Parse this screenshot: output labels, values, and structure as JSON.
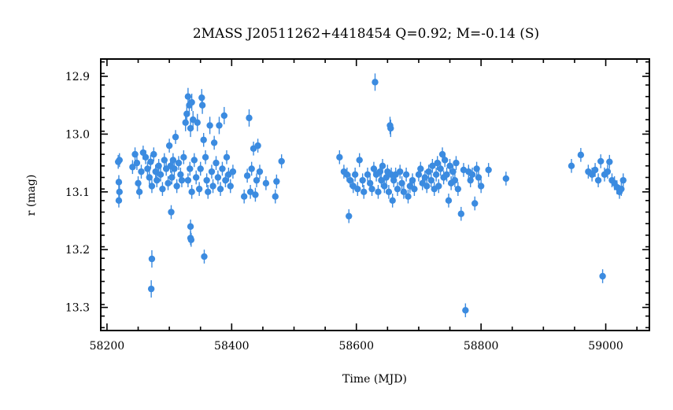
{
  "chart_data": {
    "type": "scatter",
    "title": "2MASS J20511262+4418454  Q=0.92; M=-0.14 (S)",
    "xlabel": "Time (MJD)",
    "ylabel": "r (mag)",
    "xlim": [
      58190,
      59070
    ],
    "ylim": [
      13.34,
      12.87
    ],
    "y_inverted": true,
    "x_ticks": [
      58200,
      58400,
      58600,
      58800,
      59000
    ],
    "x_tick_labels": [
      "58200",
      "58400",
      "58600",
      "58800",
      "59000"
    ],
    "y_ticks": [
      12.9,
      13.0,
      13.1,
      13.2,
      13.3
    ],
    "y_tick_labels": [
      "12.9",
      "13.0",
      "13.1",
      "13.2",
      "13.3"
    ],
    "grid": false,
    "color": "#3b8be0",
    "points": [
      {
        "x": 58218,
        "y": 13.048,
        "e": 0.012
      },
      {
        "x": 58220,
        "y": 13.045,
        "e": 0.012
      },
      {
        "x": 58219,
        "y": 13.083,
        "e": 0.012
      },
      {
        "x": 58220,
        "y": 13.1,
        "e": 0.012
      },
      {
        "x": 58219,
        "y": 13.115,
        "e": 0.012
      },
      {
        "x": 58241,
        "y": 13.057,
        "e": 0.012
      },
      {
        "x": 58245,
        "y": 13.035,
        "e": 0.012
      },
      {
        "x": 58248,
        "y": 13.05,
        "e": 0.012
      },
      {
        "x": 58250,
        "y": 13.085,
        "e": 0.012
      },
      {
        "x": 58252,
        "y": 13.1,
        "e": 0.012
      },
      {
        "x": 58255,
        "y": 13.065,
        "e": 0.012
      },
      {
        "x": 58258,
        "y": 13.032,
        "e": 0.012
      },
      {
        "x": 58262,
        "y": 13.04,
        "e": 0.012
      },
      {
        "x": 58265,
        "y": 13.06,
        "e": 0.012
      },
      {
        "x": 58268,
        "y": 13.075,
        "e": 0.012
      },
      {
        "x": 58270,
        "y": 13.048,
        "e": 0.012
      },
      {
        "x": 58272,
        "y": 13.09,
        "e": 0.012
      },
      {
        "x": 58275,
        "y": 13.035,
        "e": 0.012
      },
      {
        "x": 58278,
        "y": 13.065,
        "e": 0.012
      },
      {
        "x": 58280,
        "y": 13.08,
        "e": 0.012
      },
      {
        "x": 58283,
        "y": 13.055,
        "e": 0.012
      },
      {
        "x": 58286,
        "y": 13.07,
        "e": 0.012
      },
      {
        "x": 58289,
        "y": 13.095,
        "e": 0.012
      },
      {
        "x": 58292,
        "y": 13.045,
        "e": 0.012
      },
      {
        "x": 58295,
        "y": 13.06,
        "e": 0.012
      },
      {
        "x": 58298,
        "y": 13.085,
        "e": 0.012
      },
      {
        "x": 58300,
        "y": 13.02,
        "e": 0.012
      },
      {
        "x": 58302,
        "y": 13.055,
        "e": 0.012
      },
      {
        "x": 58304,
        "y": 13.075,
        "e": 0.012
      },
      {
        "x": 58306,
        "y": 13.045,
        "e": 0.012
      },
      {
        "x": 58272,
        "y": 13.216,
        "e": 0.015
      },
      {
        "x": 58271,
        "y": 13.268,
        "e": 0.015
      },
      {
        "x": 58303,
        "y": 13.135,
        "e": 0.012
      },
      {
        "x": 58310,
        "y": 13.005,
        "e": 0.012
      },
      {
        "x": 58308,
        "y": 13.06,
        "e": 0.012
      },
      {
        "x": 58312,
        "y": 13.09,
        "e": 0.012
      },
      {
        "x": 58315,
        "y": 13.05,
        "e": 0.012
      },
      {
        "x": 58318,
        "y": 13.07,
        "e": 0.012
      },
      {
        "x": 58320,
        "y": 13.08,
        "e": 0.012
      },
      {
        "x": 58323,
        "y": 13.04,
        "e": 0.012
      },
      {
        "x": 58326,
        "y": 12.98,
        "e": 0.015
      },
      {
        "x": 58328,
        "y": 12.965,
        "e": 0.015
      },
      {
        "x": 58330,
        "y": 12.935,
        "e": 0.015
      },
      {
        "x": 58332,
        "y": 12.95,
        "e": 0.015
      },
      {
        "x": 58334,
        "y": 12.99,
        "e": 0.015
      },
      {
        "x": 58336,
        "y": 12.945,
        "e": 0.015
      },
      {
        "x": 58338,
        "y": 12.975,
        "e": 0.015
      },
      {
        "x": 58330,
        "y": 13.08,
        "e": 0.012
      },
      {
        "x": 58333,
        "y": 13.06,
        "e": 0.012
      },
      {
        "x": 58336,
        "y": 13.1,
        "e": 0.012
      },
      {
        "x": 58334,
        "y": 13.16,
        "e": 0.012
      },
      {
        "x": 58334,
        "y": 13.18,
        "e": 0.012
      },
      {
        "x": 58335,
        "y": 13.183,
        "e": 0.012
      },
      {
        "x": 58340,
        "y": 13.045,
        "e": 0.012
      },
      {
        "x": 58343,
        "y": 13.075,
        "e": 0.012
      },
      {
        "x": 58345,
        "y": 12.98,
        "e": 0.015
      },
      {
        "x": 58348,
        "y": 13.095,
        "e": 0.012
      },
      {
        "x": 58350,
        "y": 13.06,
        "e": 0.012
      },
      {
        "x": 58352,
        "y": 12.937,
        "e": 0.015
      },
      {
        "x": 58353,
        "y": 12.95,
        "e": 0.015
      },
      {
        "x": 58355,
        "y": 13.01,
        "e": 0.012
      },
      {
        "x": 58356,
        "y": 13.212,
        "e": 0.012
      },
      {
        "x": 58358,
        "y": 13.04,
        "e": 0.012
      },
      {
        "x": 58360,
        "y": 13.08,
        "e": 0.012
      },
      {
        "x": 58362,
        "y": 13.1,
        "e": 0.012
      },
      {
        "x": 58365,
        "y": 12.985,
        "e": 0.015
      },
      {
        "x": 58368,
        "y": 13.065,
        "e": 0.012
      },
      {
        "x": 58370,
        "y": 13.09,
        "e": 0.012
      },
      {
        "x": 58372,
        "y": 13.015,
        "e": 0.012
      },
      {
        "x": 58375,
        "y": 13.05,
        "e": 0.012
      },
      {
        "x": 58378,
        "y": 13.075,
        "e": 0.012
      },
      {
        "x": 58380,
        "y": 12.985,
        "e": 0.015
      },
      {
        "x": 58382,
        "y": 13.095,
        "e": 0.012
      },
      {
        "x": 58385,
        "y": 13.06,
        "e": 0.012
      },
      {
        "x": 58388,
        "y": 12.968,
        "e": 0.015
      },
      {
        "x": 58390,
        "y": 13.08,
        "e": 0.012
      },
      {
        "x": 58392,
        "y": 13.04,
        "e": 0.012
      },
      {
        "x": 58395,
        "y": 13.07,
        "e": 0.012
      },
      {
        "x": 58398,
        "y": 13.09,
        "e": 0.012
      },
      {
        "x": 58402,
        "y": 13.065,
        "e": 0.012
      },
      {
        "x": 58420,
        "y": 13.108,
        "e": 0.012
      },
      {
        "x": 58425,
        "y": 13.072,
        "e": 0.012
      },
      {
        "x": 58428,
        "y": 12.972,
        "e": 0.015
      },
      {
        "x": 58430,
        "y": 13.1,
        "e": 0.012
      },
      {
        "x": 58432,
        "y": 13.06,
        "e": 0.012
      },
      {
        "x": 58435,
        "y": 13.025,
        "e": 0.012
      },
      {
        "x": 58438,
        "y": 13.105,
        "e": 0.012
      },
      {
        "x": 58440,
        "y": 13.08,
        "e": 0.012
      },
      {
        "x": 58442,
        "y": 13.02,
        "e": 0.012
      },
      {
        "x": 58445,
        "y": 13.065,
        "e": 0.012
      },
      {
        "x": 58455,
        "y": 13.085,
        "e": 0.012
      },
      {
        "x": 58470,
        "y": 13.108,
        "e": 0.012
      },
      {
        "x": 58472,
        "y": 13.082,
        "e": 0.012
      },
      {
        "x": 58480,
        "y": 13.047,
        "e": 0.012
      },
      {
        "x": 58573,
        "y": 13.04,
        "e": 0.012
      },
      {
        "x": 58580,
        "y": 13.065,
        "e": 0.012
      },
      {
        "x": 58585,
        "y": 13.07,
        "e": 0.012
      },
      {
        "x": 58588,
        "y": 13.142,
        "e": 0.012
      },
      {
        "x": 58590,
        "y": 13.08,
        "e": 0.012
      },
      {
        "x": 58595,
        "y": 13.09,
        "e": 0.012
      },
      {
        "x": 58598,
        "y": 13.07,
        "e": 0.012
      },
      {
        "x": 58602,
        "y": 13.095,
        "e": 0.012
      },
      {
        "x": 58605,
        "y": 13.045,
        "e": 0.012
      },
      {
        "x": 58610,
        "y": 13.08,
        "e": 0.012
      },
      {
        "x": 58612,
        "y": 13.1,
        "e": 0.012
      },
      {
        "x": 58618,
        "y": 13.07,
        "e": 0.012
      },
      {
        "x": 58622,
        "y": 13.085,
        "e": 0.012
      },
      {
        "x": 58625,
        "y": 13.095,
        "e": 0.012
      },
      {
        "x": 58628,
        "y": 13.06,
        "e": 0.012
      },
      {
        "x": 58630,
        "y": 12.91,
        "e": 0.015
      },
      {
        "x": 58632,
        "y": 13.07,
        "e": 0.012
      },
      {
        "x": 58635,
        "y": 13.1,
        "e": 0.012
      },
      {
        "x": 58638,
        "y": 13.065,
        "e": 0.012
      },
      {
        "x": 58640,
        "y": 13.08,
        "e": 0.012
      },
      {
        "x": 58642,
        "y": 13.055,
        "e": 0.012
      },
      {
        "x": 58645,
        "y": 13.09,
        "e": 0.012
      },
      {
        "x": 58648,
        "y": 13.075,
        "e": 0.012
      },
      {
        "x": 58650,
        "y": 13.065,
        "e": 0.012
      },
      {
        "x": 58652,
        "y": 13.1,
        "e": 0.012
      },
      {
        "x": 58654,
        "y": 12.985,
        "e": 0.015
      },
      {
        "x": 58655,
        "y": 12.99,
        "e": 0.015
      },
      {
        "x": 58656,
        "y": 13.07,
        "e": 0.012
      },
      {
        "x": 58658,
        "y": 13.115,
        "e": 0.012
      },
      {
        "x": 58660,
        "y": 13.08,
        "e": 0.012
      },
      {
        "x": 58663,
        "y": 13.07,
        "e": 0.012
      },
      {
        "x": 58666,
        "y": 13.095,
        "e": 0.012
      },
      {
        "x": 58670,
        "y": 13.065,
        "e": 0.012
      },
      {
        "x": 58673,
        "y": 13.085,
        "e": 0.012
      },
      {
        "x": 58676,
        "y": 13.1,
        "e": 0.012
      },
      {
        "x": 58680,
        "y": 13.07,
        "e": 0.012
      },
      {
        "x": 58683,
        "y": 13.108,
        "e": 0.012
      },
      {
        "x": 58686,
        "y": 13.09,
        "e": 0.012
      },
      {
        "x": 58690,
        "y": 13.08,
        "e": 0.012
      },
      {
        "x": 58693,
        "y": 13.095,
        "e": 0.012
      },
      {
        "x": 58700,
        "y": 13.07,
        "e": 0.012
      },
      {
        "x": 58703,
        "y": 13.06,
        "e": 0.012
      },
      {
        "x": 58706,
        "y": 13.085,
        "e": 0.012
      },
      {
        "x": 58710,
        "y": 13.075,
        "e": 0.012
      },
      {
        "x": 58713,
        "y": 13.09,
        "e": 0.012
      },
      {
        "x": 58716,
        "y": 13.065,
        "e": 0.012
      },
      {
        "x": 58720,
        "y": 13.08,
        "e": 0.012
      },
      {
        "x": 58722,
        "y": 13.055,
        "e": 0.012
      },
      {
        "x": 58725,
        "y": 13.095,
        "e": 0.012
      },
      {
        "x": 58728,
        "y": 13.07,
        "e": 0.012
      },
      {
        "x": 58730,
        "y": 13.05,
        "e": 0.012
      },
      {
        "x": 58732,
        "y": 13.09,
        "e": 0.012
      },
      {
        "x": 58735,
        "y": 13.06,
        "e": 0.012
      },
      {
        "x": 58738,
        "y": 13.035,
        "e": 0.012
      },
      {
        "x": 58740,
        "y": 13.075,
        "e": 0.012
      },
      {
        "x": 58742,
        "y": 13.045,
        "e": 0.012
      },
      {
        "x": 58745,
        "y": 13.07,
        "e": 0.012
      },
      {
        "x": 58748,
        "y": 13.115,
        "e": 0.012
      },
      {
        "x": 58750,
        "y": 13.055,
        "e": 0.012
      },
      {
        "x": 58752,
        "y": 13.085,
        "e": 0.012
      },
      {
        "x": 58755,
        "y": 13.065,
        "e": 0.012
      },
      {
        "x": 58758,
        "y": 13.08,
        "e": 0.012
      },
      {
        "x": 58760,
        "y": 13.05,
        "e": 0.012
      },
      {
        "x": 58763,
        "y": 13.095,
        "e": 0.012
      },
      {
        "x": 58768,
        "y": 13.138,
        "e": 0.012
      },
      {
        "x": 58772,
        "y": 13.062,
        "e": 0.012
      },
      {
        "x": 58775,
        "y": 13.305,
        "e": 0.012
      },
      {
        "x": 58780,
        "y": 13.065,
        "e": 0.012
      },
      {
        "x": 58783,
        "y": 13.08,
        "e": 0.012
      },
      {
        "x": 58786,
        "y": 13.07,
        "e": 0.012
      },
      {
        "x": 58790,
        "y": 13.12,
        "e": 0.012
      },
      {
        "x": 58793,
        "y": 13.06,
        "e": 0.012
      },
      {
        "x": 58796,
        "y": 13.075,
        "e": 0.012
      },
      {
        "x": 58800,
        "y": 13.09,
        "e": 0.012
      },
      {
        "x": 58812,
        "y": 13.062,
        "e": 0.012
      },
      {
        "x": 58840,
        "y": 13.077,
        "e": 0.012
      },
      {
        "x": 58945,
        "y": 13.055,
        "e": 0.012
      },
      {
        "x": 58960,
        "y": 13.036,
        "e": 0.012
      },
      {
        "x": 58972,
        "y": 13.065,
        "e": 0.012
      },
      {
        "x": 58978,
        "y": 13.07,
        "e": 0.012
      },
      {
        "x": 58983,
        "y": 13.062,
        "e": 0.012
      },
      {
        "x": 58988,
        "y": 13.08,
        "e": 0.012
      },
      {
        "x": 58992,
        "y": 13.047,
        "e": 0.012
      },
      {
        "x": 58995,
        "y": 13.246,
        "e": 0.012
      },
      {
        "x": 58998,
        "y": 13.07,
        "e": 0.012
      },
      {
        "x": 59003,
        "y": 13.065,
        "e": 0.012
      },
      {
        "x": 59006,
        "y": 13.048,
        "e": 0.012
      },
      {
        "x": 59010,
        "y": 13.08,
        "e": 0.012
      },
      {
        "x": 59014,
        "y": 13.085,
        "e": 0.012
      },
      {
        "x": 59018,
        "y": 13.092,
        "e": 0.012
      },
      {
        "x": 59022,
        "y": 13.1,
        "e": 0.012
      },
      {
        "x": 59025,
        "y": 13.095,
        "e": 0.012
      },
      {
        "x": 59028,
        "y": 13.08,
        "e": 0.012
      }
    ]
  }
}
